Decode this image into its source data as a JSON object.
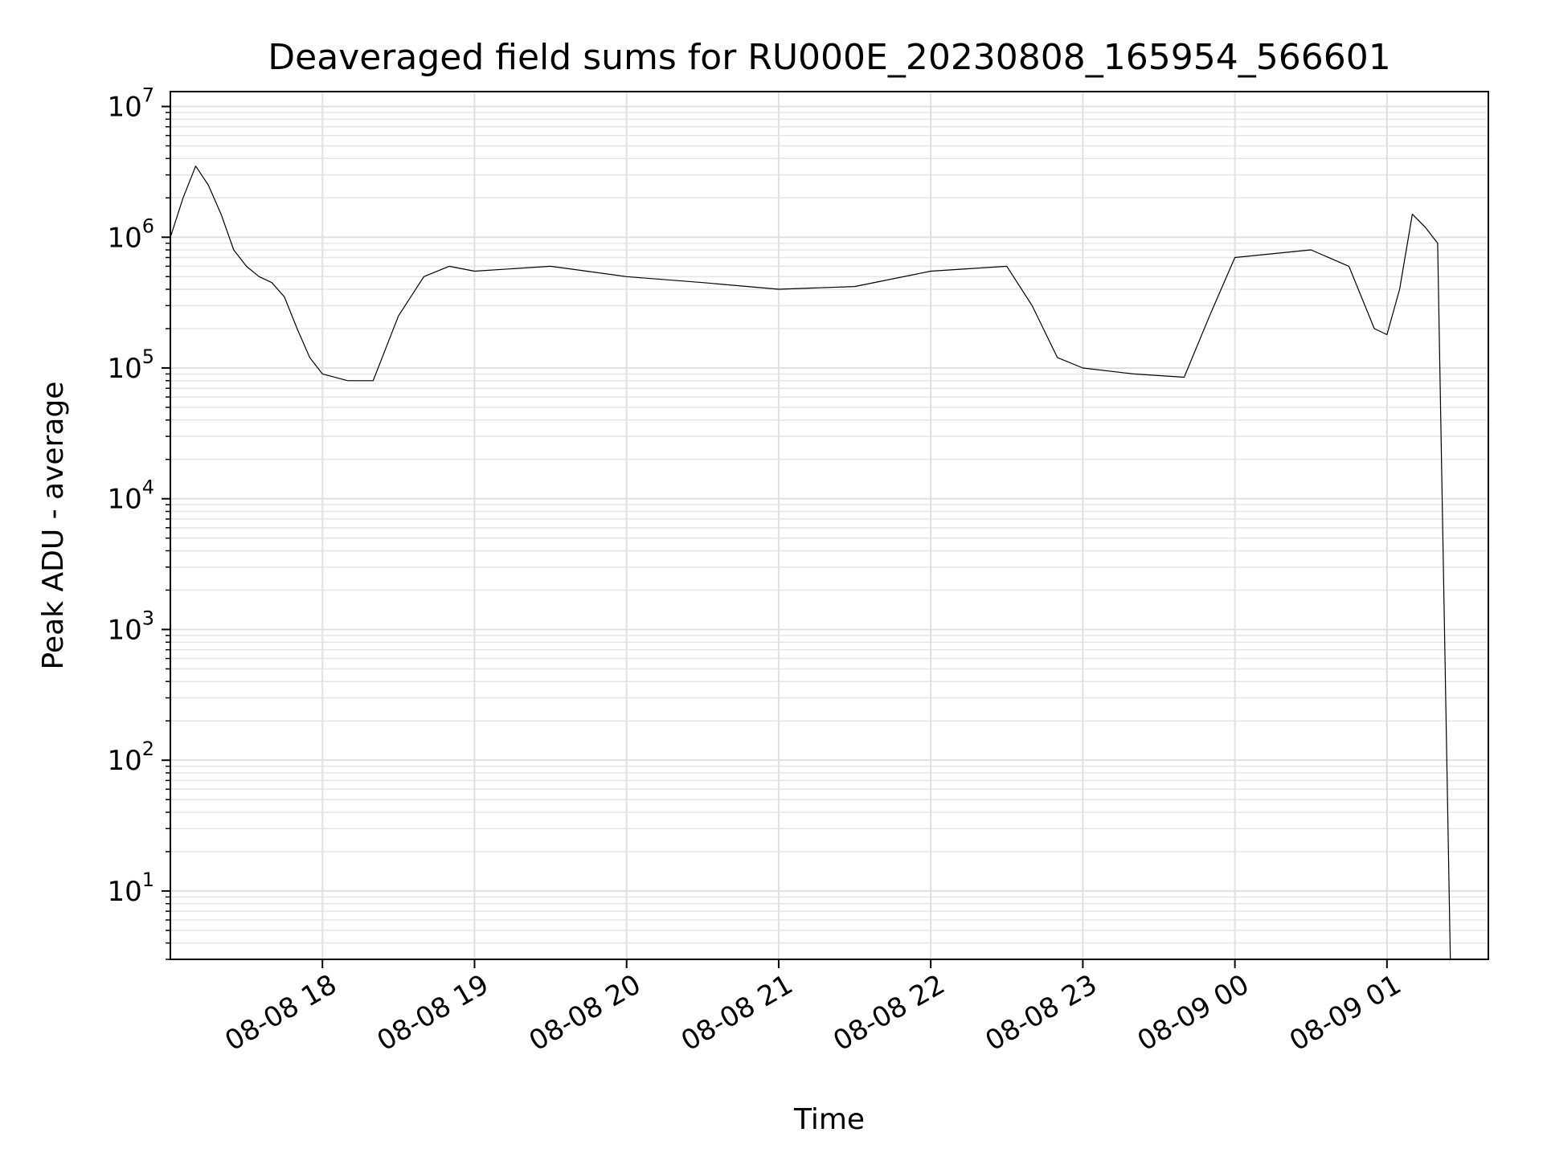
{
  "chart_data": {
    "type": "line",
    "title": "Deaveraged field sums for RU000E_20230808_165954_566601",
    "xlabel": "Time",
    "ylabel": "Peak ADU - average",
    "yscale": "log",
    "ylim": [
      3,
      13000000
    ],
    "xlim": [
      "2023-08-08 17:00",
      "2023-08-09 01:40"
    ],
    "grid": true,
    "line_color": "#000000",
    "x_ticks": [
      {
        "label": "08-08 18",
        "time": "2023-08-08 18:00"
      },
      {
        "label": "08-08 19",
        "time": "2023-08-08 19:00"
      },
      {
        "label": "08-08 20",
        "time": "2023-08-08 20:00"
      },
      {
        "label": "08-08 21",
        "time": "2023-08-08 21:00"
      },
      {
        "label": "08-08 22",
        "time": "2023-08-08 22:00"
      },
      {
        "label": "08-08 23",
        "time": "2023-08-08 23:00"
      },
      {
        "label": "08-09 00",
        "time": "2023-08-09 00:00"
      },
      {
        "label": "08-09 01",
        "time": "2023-08-09 01:00"
      }
    ],
    "y_ticks": [
      {
        "base": "10",
        "exp": "1",
        "value": 10
      },
      {
        "base": "10",
        "exp": "2",
        "value": 100
      },
      {
        "base": "10",
        "exp": "3",
        "value": 1000
      },
      {
        "base": "10",
        "exp": "4",
        "value": 10000
      },
      {
        "base": "10",
        "exp": "5",
        "value": 100000
      },
      {
        "base": "10",
        "exp": "6",
        "value": 1000000
      },
      {
        "base": "10",
        "exp": "7",
        "value": 10000000
      }
    ],
    "series": [
      {
        "x": [
          "2023-08-08 17:00",
          "2023-08-08 17:05",
          "2023-08-08 17:10",
          "2023-08-08 17:15",
          "2023-08-08 17:20",
          "2023-08-08 17:25",
          "2023-08-08 17:30",
          "2023-08-08 17:35",
          "2023-08-08 17:40",
          "2023-08-08 17:45",
          "2023-08-08 17:50",
          "2023-08-08 17:55",
          "2023-08-08 18:00",
          "2023-08-08 18:10",
          "2023-08-08 18:20",
          "2023-08-08 18:30",
          "2023-08-08 18:40",
          "2023-08-08 18:50",
          "2023-08-08 19:00",
          "2023-08-08 19:30",
          "2023-08-08 20:00",
          "2023-08-08 20:30",
          "2023-08-08 21:00",
          "2023-08-08 21:30",
          "2023-08-08 22:00",
          "2023-08-08 22:30",
          "2023-08-08 22:40",
          "2023-08-08 22:50",
          "2023-08-08 23:00",
          "2023-08-08 23:20",
          "2023-08-08 23:40",
          "2023-08-08 23:50",
          "2023-08-09 00:00",
          "2023-08-09 00:30",
          "2023-08-09 00:45",
          "2023-08-09 00:55",
          "2023-08-09 01:00",
          "2023-08-09 01:05",
          "2023-08-09 01:10",
          "2023-08-09 01:15",
          "2023-08-09 01:20",
          "2023-08-09 01:25"
        ],
        "y": [
          1000000,
          2000000,
          3500000,
          2500000,
          1500000,
          800000,
          600000,
          500000,
          450000,
          350000,
          200000,
          120000,
          90000,
          80000,
          80000,
          250000,
          500000,
          600000,
          550000,
          600000,
          500000,
          450000,
          400000,
          420000,
          550000,
          600000,
          300000,
          120000,
          100000,
          90000,
          85000,
          250000,
          700000,
          800000,
          600000,
          200000,
          180000,
          400000,
          1500000,
          1200000,
          900000,
          3
        ]
      }
    ]
  }
}
